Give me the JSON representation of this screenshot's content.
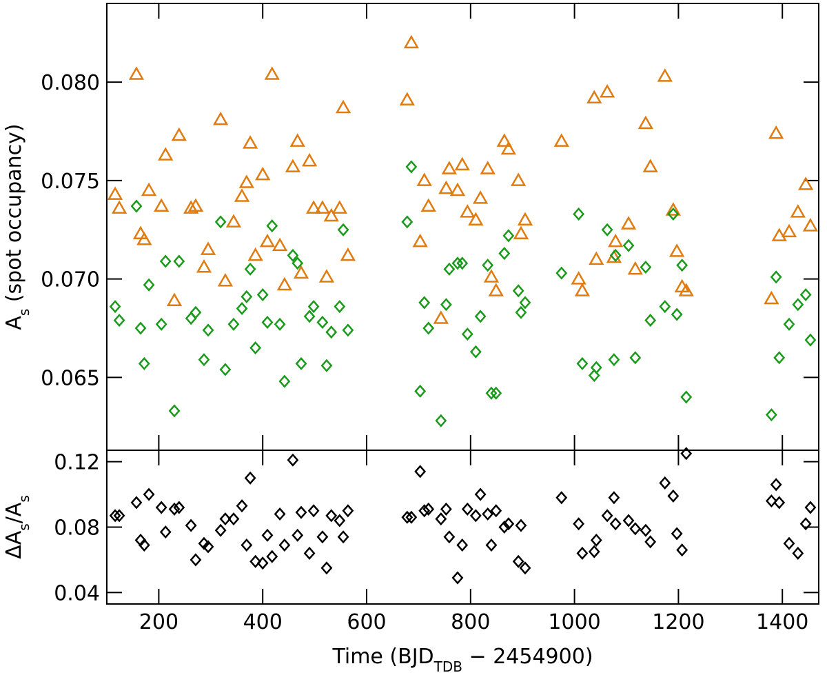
{
  "chart_data": [
    {
      "type": "scatter",
      "ylabel": [
        {
          "text": "A"
        },
        {
          "text": "s",
          "sub": true
        },
        {
          "text": " (spot occupancy)"
        }
      ],
      "x": [
        116,
        124,
        157,
        165,
        172,
        181,
        205,
        213,
        230,
        239,
        262,
        271,
        287,
        295,
        319,
        328,
        344,
        360,
        369,
        376,
        386,
        400,
        409,
        418,
        433,
        442,
        458,
        467,
        474,
        490,
        498,
        515,
        523,
        532,
        548,
        555,
        564,
        678,
        686,
        703,
        711,
        719,
        743,
        753,
        759,
        775,
        784,
        794,
        810,
        819,
        833,
        840,
        849,
        865,
        873,
        892,
        897,
        905,
        975,
        1008,
        1015,
        1038,
        1042,
        1063,
        1076,
        1079,
        1104,
        1117,
        1137,
        1146,
        1174,
        1190,
        1197,
        1207,
        1215,
        1379,
        1388,
        1394,
        1413,
        1430,
        1445,
        1454
      ],
      "xlim": [
        100,
        1470
      ],
      "xticks": [
        200,
        400,
        600,
        800,
        1000,
        1200,
        1400
      ],
      "ylim": [
        0.0613,
        0.084
      ],
      "yticks": [
        {
          "value": 0.065,
          "label": "0.065"
        },
        {
          "value": 0.07,
          "label": "0.070"
        },
        {
          "value": 0.075,
          "label": "0.075"
        },
        {
          "value": 0.08,
          "label": "0.080"
        }
      ],
      "series": [
        {
          "color": "#e07b10",
          "marker": "triangle",
          "values": [
            0.0743,
            0.0736,
            0.0804,
            0.0723,
            0.072,
            0.0745,
            0.0737,
            0.0763,
            0.0689,
            0.0773,
            0.0736,
            0.0737,
            0.0706,
            0.0715,
            0.0781,
            0.0699,
            0.0729,
            0.0742,
            0.0749,
            0.0769,
            0.0712,
            0.0753,
            0.0719,
            0.0804,
            0.0717,
            0.0697,
            0.0757,
            0.077,
            0.0703,
            0.076,
            0.0736,
            0.0736,
            0.0701,
            0.0732,
            0.0736,
            0.0787,
            0.0712,
            0.0791,
            0.082,
            0.0719,
            0.075,
            0.0737,
            0.068,
            0.0746,
            0.0756,
            0.0745,
            0.0758,
            0.0734,
            0.073,
            0.0741,
            0.0756,
            0.0701,
            0.0694,
            0.077,
            0.0766,
            0.075,
            0.0723,
            0.073,
            0.077,
            0.07,
            0.0694,
            0.0792,
            0.071,
            0.0795,
            0.0711,
            0.0719,
            0.0728,
            0.0705,
            0.0779,
            0.0757,
            0.0803,
            0.0735,
            0.0714,
            0.0696,
            0.0694,
            0.069,
            0.0774,
            0.0722,
            0.0724,
            0.0734,
            0.0748,
            0.0727
          ]
        },
        {
          "color": "#1a9a1a",
          "marker": "diamond",
          "values": [
            0.0686,
            0.0679,
            0.0737,
            0.0675,
            0.0657,
            0.0697,
            0.0677,
            0.0709,
            0.0633,
            0.0709,
            0.068,
            0.0683,
            0.0659,
            0.0674,
            0.0729,
            0.0654,
            0.0677,
            0.0685,
            0.0691,
            0.0705,
            0.0665,
            0.0692,
            0.0678,
            0.0727,
            0.0677,
            0.0648,
            0.0712,
            0.0708,
            0.0657,
            0.0681,
            0.0686,
            0.0678,
            0.0656,
            0.0673,
            0.0686,
            0.0725,
            0.0674,
            0.0729,
            0.0757,
            0.0643,
            0.0688,
            0.0675,
            0.0628,
            0.0687,
            0.0705,
            0.0708,
            0.0708,
            0.0672,
            0.0663,
            0.0681,
            0.0707,
            0.0642,
            0.0642,
            0.0713,
            0.0722,
            0.0694,
            0.0683,
            0.0688,
            0.0703,
            0.0733,
            0.0657,
            0.0651,
            0.0655,
            0.0725,
            0.0659,
            0.0712,
            0.0717,
            0.066,
            0.0706,
            0.0679,
            0.0686,
            0.0733,
            0.0682,
            0.0707,
            0.064,
            0.0631,
            0.0701,
            0.066,
            0.0677,
            0.0687,
            0.0692,
            0.0669
          ]
        }
      ]
    },
    {
      "type": "scatter",
      "xlabel": [
        {
          "text": "Time (BJD"
        },
        {
          "text": "TDB",
          "sub": true
        },
        {
          "text": " − 2454900)"
        }
      ],
      "ylabel": [
        {
          "text": "ΔA"
        },
        {
          "text": "s",
          "sub": true
        },
        {
          "text": "/A"
        },
        {
          "text": "s",
          "sub": true
        }
      ],
      "ylim": [
        0.033,
        0.127
      ],
      "yticks": [
        0.04,
        0.08,
        0.12
      ],
      "series": [
        {
          "color": "#000000",
          "marker": "diamond",
          "values": [
            0.087,
            0.087,
            0.095,
            0.072,
            0.069,
            0.1,
            0.092,
            0.077,
            0.091,
            0.092,
            0.081,
            0.06,
            0.07,
            0.068,
            0.078,
            0.085,
            0.085,
            0.093,
            0.069,
            0.11,
            0.059,
            0.058,
            0.075,
            0.062,
            0.088,
            0.069,
            0.121,
            0.075,
            0.089,
            0.064,
            0.09,
            0.074,
            0.055,
            0.087,
            0.084,
            0.074,
            0.09,
            0.086,
            0.086,
            0.114,
            0.09,
            0.091,
            0.085,
            0.091,
            0.074,
            0.049,
            0.069,
            0.091,
            0.087,
            0.1,
            0.088,
            0.069,
            0.09,
            0.08,
            0.082,
            0.059,
            0.081,
            0.055,
            0.098,
            0.082,
            0.064,
            0.065,
            0.072,
            0.087,
            0.098,
            0.082,
            0.084,
            0.079,
            0.078,
            0.071,
            0.107,
            0.099,
            0.076,
            0.066,
            0.125,
            0.096,
            0.106,
            0.095,
            0.07,
            0.064,
            0.082,
            0.092
          ]
        }
      ]
    }
  ]
}
